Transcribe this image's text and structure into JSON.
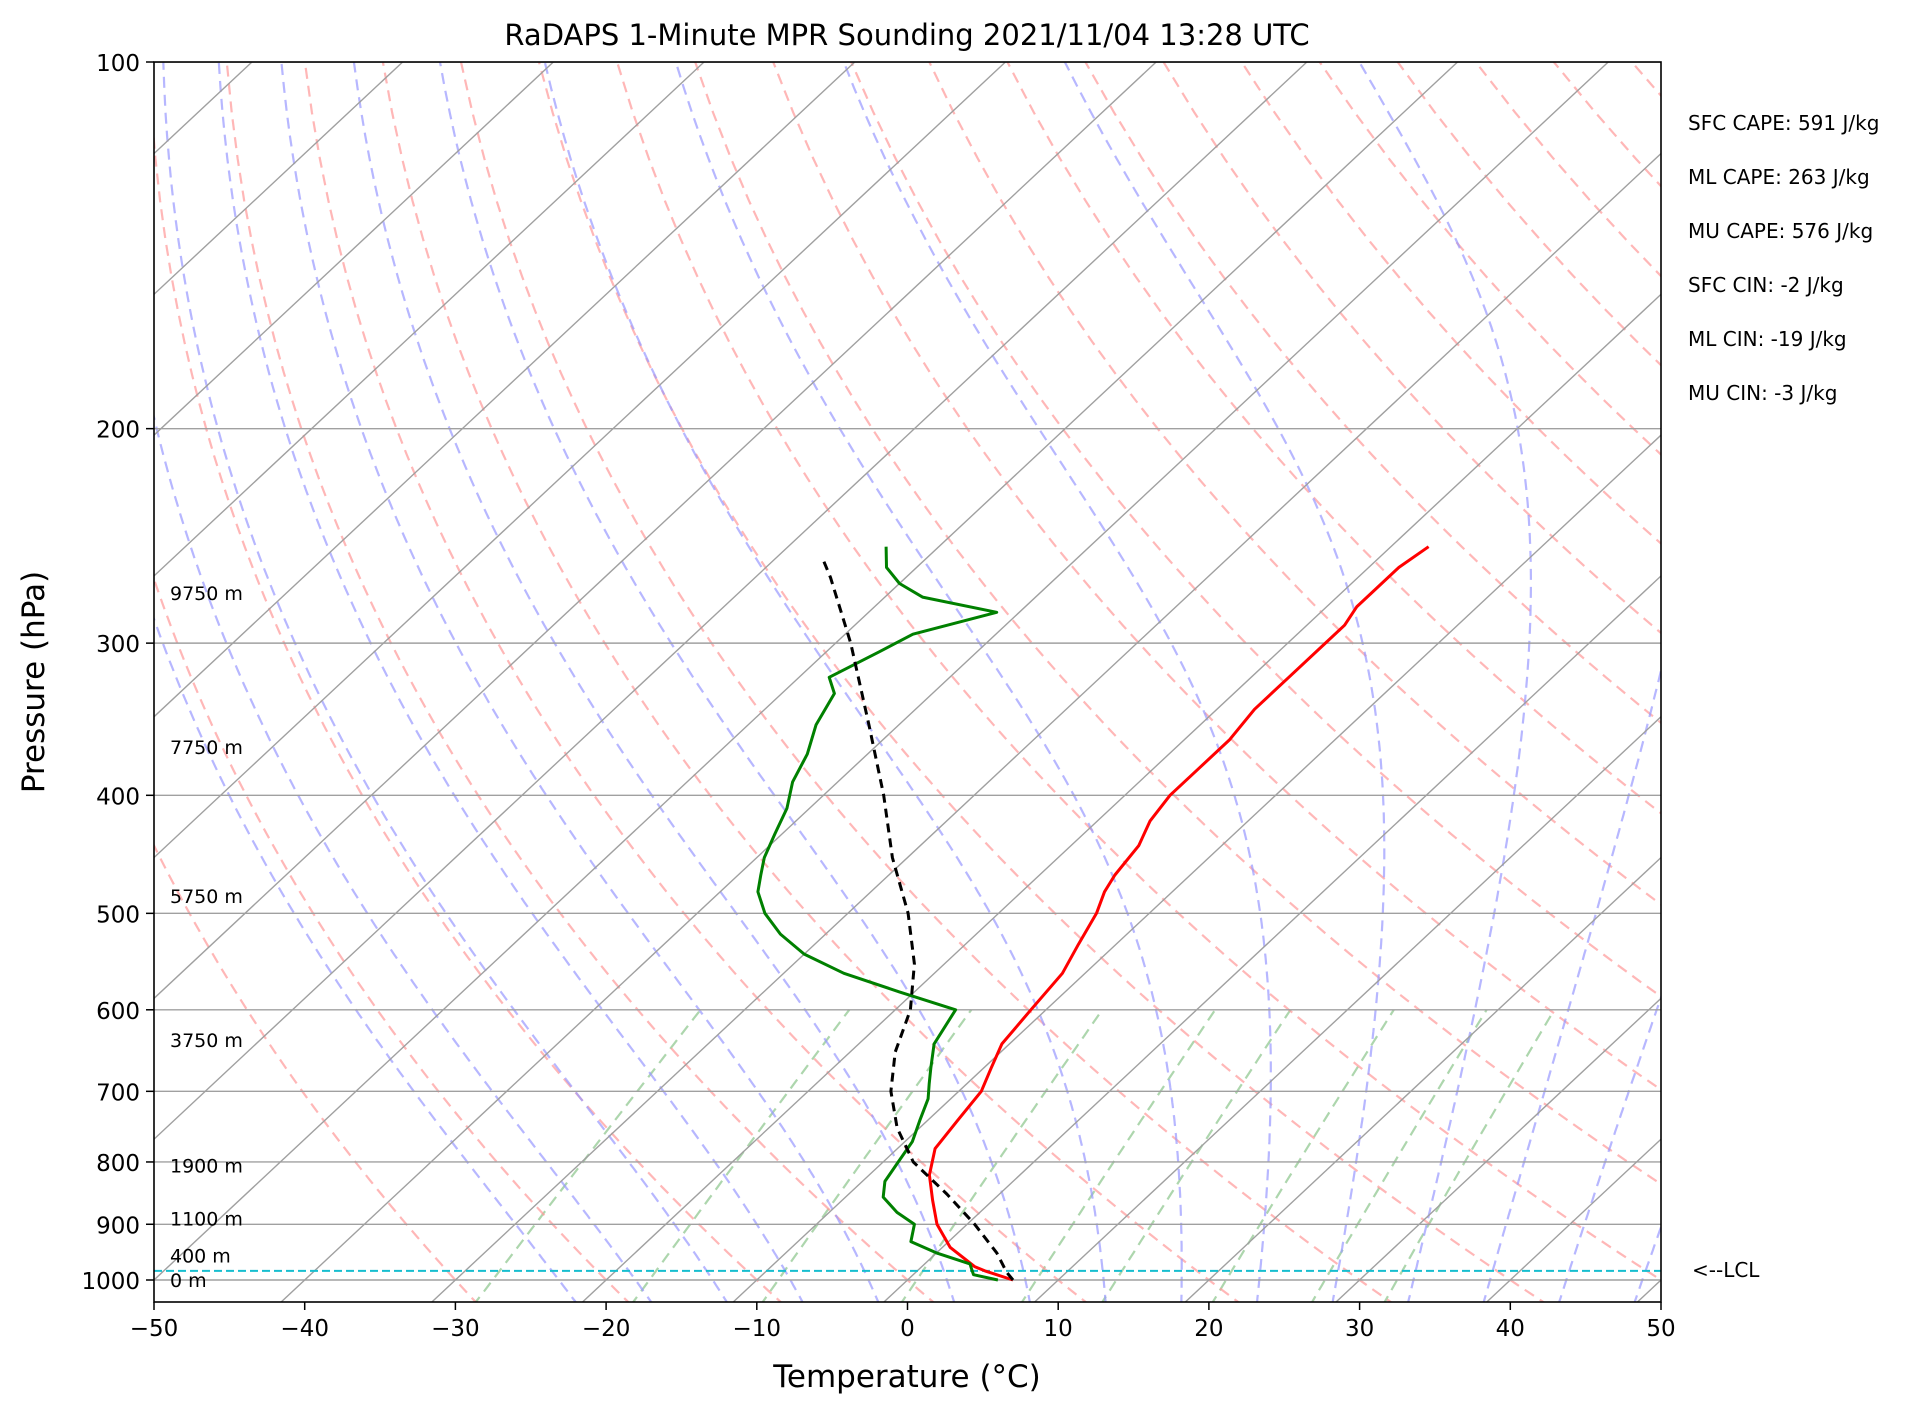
{
  "chart_data": {
    "type": "line",
    "title": "RaDAPS 1-Minute MPR Sounding 2021/11/04 13:28 UTC",
    "xlabel": "Temperature (°C)",
    "ylabel": "Pressure (hPa)",
    "x_scale": "skew-T",
    "y_scale": "log",
    "xlim": [
      -50,
      50
    ],
    "ylim": [
      1050,
      100
    ],
    "x_ticks": [
      -50,
      -40,
      -30,
      -20,
      -10,
      0,
      10,
      20,
      30,
      40,
      50
    ],
    "x_tick_labels": [
      "−50",
      "−40",
      "−30",
      "−20",
      "−10",
      "0",
      "10",
      "20",
      "30",
      "40",
      "50"
    ],
    "y_ticks": [
      100,
      200,
      300,
      400,
      500,
      600,
      700,
      800,
      900,
      1000
    ],
    "y_tick_labels": [
      "100",
      "200",
      "300",
      "400",
      "500",
      "600",
      "700",
      "800",
      "900",
      "1000"
    ],
    "grid": true,
    "skew_degrees_per_log_decade": 86.5,
    "series": [
      {
        "role": "temperature",
        "color": "#ff0000",
        "points": [
          [
            7.0,
            1000
          ],
          [
            4.5,
            983
          ],
          [
            3.5,
            975
          ],
          [
            0.5,
            940
          ],
          [
            -2.0,
            900
          ],
          [
            -4.0,
            860
          ],
          [
            -6.0,
            820
          ],
          [
            -7.5,
            780
          ],
          [
            -8.0,
            740
          ],
          [
            -8.5,
            700
          ],
          [
            -9.5,
            670
          ],
          [
            -10.5,
            640
          ],
          [
            -11.0,
            600
          ],
          [
            -11.5,
            560
          ],
          [
            -12.5,
            530
          ],
          [
            -13.5,
            500
          ],
          [
            -14.5,
            480
          ],
          [
            -15.0,
            465
          ],
          [
            -15.5,
            440
          ],
          [
            -16.5,
            420
          ],
          [
            -17.0,
            400
          ],
          [
            -17.0,
            380
          ],
          [
            -17.0,
            360
          ],
          [
            -17.5,
            340
          ],
          [
            -17.5,
            320
          ],
          [
            -17.5,
            300
          ],
          [
            -17.5,
            290
          ],
          [
            -18.0,
            280
          ],
          [
            -18.0,
            270
          ],
          [
            -18.0,
            260
          ],
          [
            -17.5,
            250
          ]
        ]
      },
      {
        "role": "dewpoint",
        "color": "#008000",
        "points": [
          [
            6.0,
            1000
          ],
          [
            4.0,
            990
          ],
          [
            3.5,
            980
          ],
          [
            3.0,
            970
          ],
          [
            0.0,
            950
          ],
          [
            -2.5,
            930
          ],
          [
            -3.5,
            900
          ],
          [
            -5.5,
            880
          ],
          [
            -7.5,
            855
          ],
          [
            -8.5,
            830
          ],
          [
            -9.0,
            800
          ],
          [
            -9.5,
            770
          ],
          [
            -10.5,
            740
          ],
          [
            -11.5,
            710
          ],
          [
            -12.5,
            690
          ],
          [
            -13.5,
            670
          ],
          [
            -15.0,
            640
          ],
          [
            -16.0,
            600
          ],
          [
            -21.0,
            580
          ],
          [
            -26.0,
            560
          ],
          [
            -30.0,
            540
          ],
          [
            -33.0,
            520
          ],
          [
            -35.5,
            500
          ],
          [
            -37.5,
            480
          ],
          [
            -38.5,
            465
          ],
          [
            -39.5,
            450
          ],
          [
            -40.5,
            430
          ],
          [
            -41.5,
            410
          ],
          [
            -43.0,
            390
          ],
          [
            -44.0,
            370
          ],
          [
            -45.5,
            350
          ],
          [
            -46.5,
            330
          ],
          [
            -48.0,
            320
          ],
          [
            -46.5,
            305
          ],
          [
            -45.5,
            295
          ],
          [
            -41.5,
            283
          ],
          [
            -47.5,
            275
          ],
          [
            -50.0,
            268
          ],
          [
            -52.0,
            260
          ],
          [
            -53.5,
            250
          ]
        ]
      },
      {
        "role": "parcel",
        "color": "#000000",
        "points": [
          [
            7.0,
            1000
          ],
          [
            6.0,
            985
          ],
          [
            4.0,
            950
          ],
          [
            0.5,
            900
          ],
          [
            -3.5,
            850
          ],
          [
            -8.0,
            800
          ],
          [
            -11.5,
            750
          ],
          [
            -14.5,
            700
          ],
          [
            -17.0,
            650
          ],
          [
            -19.0,
            600
          ],
          [
            -22.0,
            550
          ],
          [
            -26.0,
            500
          ],
          [
            -31.0,
            450
          ],
          [
            -36.0,
            400
          ],
          [
            -42.0,
            350
          ],
          [
            -49.0,
            300
          ],
          [
            -55.0,
            265
          ],
          [
            -57.0,
            255
          ]
        ]
      }
    ],
    "lcl": {
      "pressure": 983,
      "label": "<--LCL",
      "color": "#17becf"
    },
    "height_labels": [
      {
        "text": "0 m",
        "pressure": 1000
      },
      {
        "text": "400 m",
        "pressure": 955
      },
      {
        "text": "1100 m",
        "pressure": 890
      },
      {
        "text": "1900 m",
        "pressure": 805
      },
      {
        "text": "3750 m",
        "pressure": 635
      },
      {
        "text": "5750 m",
        "pressure": 484
      },
      {
        "text": "7750 m",
        "pressure": 365
      },
      {
        "text": "9750 m",
        "pressure": 273
      }
    ],
    "indices": [
      {
        "name": "SFC CAPE",
        "text": "SFC CAPE: 591 J/kg"
      },
      {
        "name": "ML CAPE",
        "text": "ML CAPE: 263 J/kg"
      },
      {
        "name": "MU CAPE",
        "text": "MU CAPE: 576 J/kg"
      },
      {
        "name": "SFC CIN",
        "text": "SFC CIN: -2 J/kg"
      },
      {
        "name": "ML CIN",
        "text": "ML CIN: -19 J/kg"
      },
      {
        "name": "MU CIN",
        "text": "MU CIN: -3 J/kg"
      }
    ],
    "background_lines": {
      "isotherm_color": "#a0a0a0",
      "dry_adiabat_color": "#ff9999",
      "moist_adiabat_color": "#9999ff",
      "mixing_ratio_color": "#99cc99"
    }
  }
}
